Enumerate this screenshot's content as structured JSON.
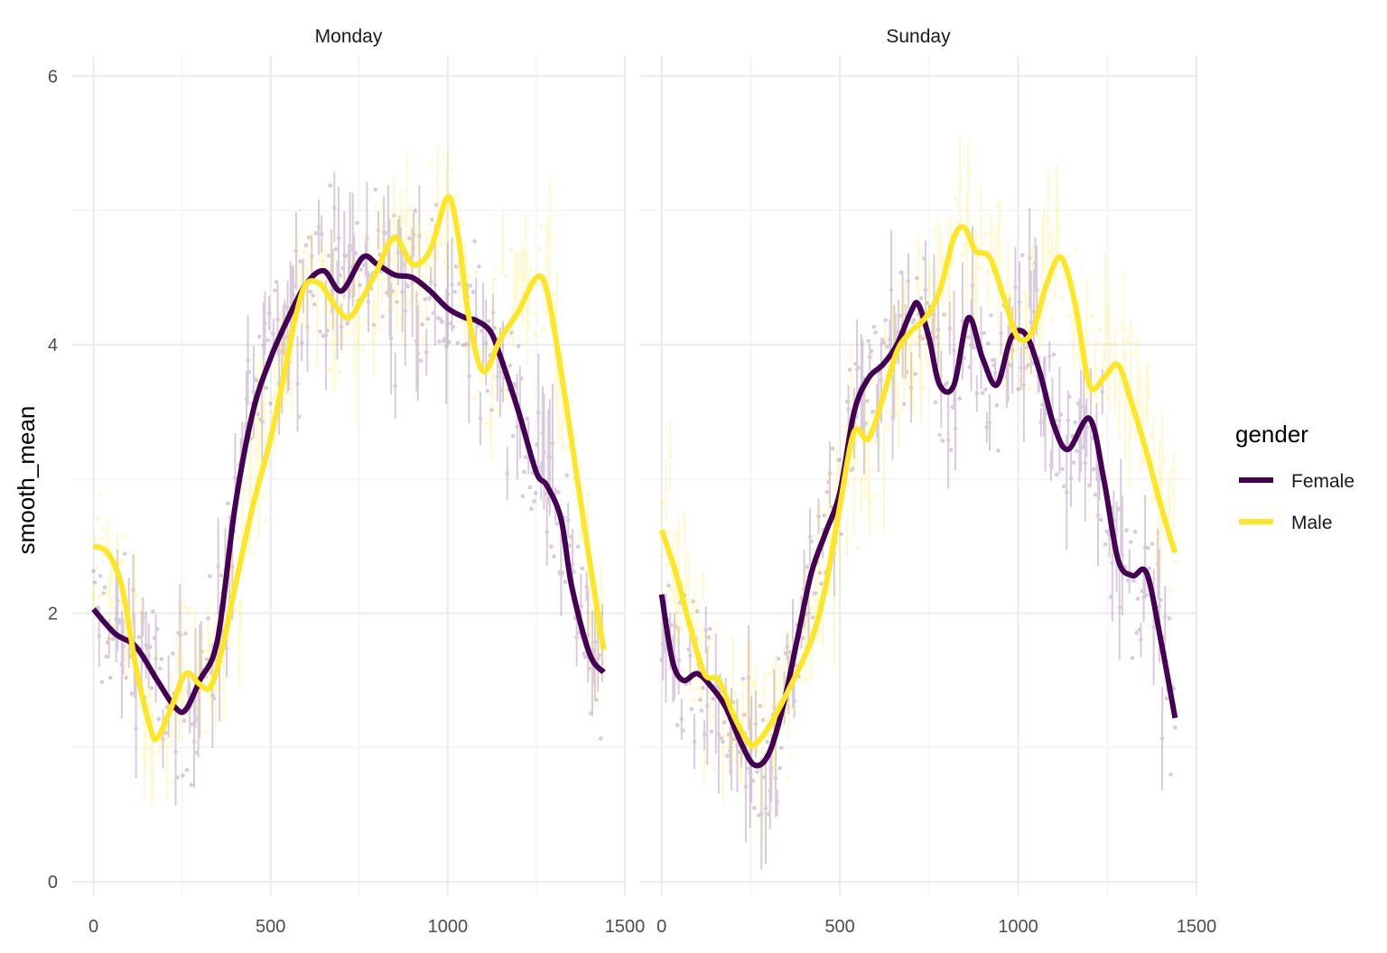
{
  "chart_data": {
    "type": "line",
    "ylabel": "smooth_mean",
    "xlabel": "",
    "xlim": [
      -60,
      1500
    ],
    "ylim": [
      -0.1,
      6.15
    ],
    "x_ticks": [
      0,
      500,
      1000,
      1500
    ],
    "y_ticks": [
      0,
      2,
      4,
      6
    ],
    "grid": true,
    "raw_points_shown": true,
    "legend": {
      "title": "gender",
      "position": "right",
      "entries": [
        "Female",
        "Male"
      ]
    },
    "colors": {
      "Female": "#440154",
      "Male": "#FDE725"
    },
    "panels": [
      {
        "title": "Monday",
        "series": [
          {
            "name": "Female",
            "x": [
              0,
              60,
              120,
              180,
              230,
              260,
              300,
              350,
              400,
              450,
              500,
              550,
              600,
              650,
              700,
              760,
              800,
              850,
              900,
              950,
              1000,
              1050,
              1080,
              1120,
              1150,
              1200,
              1250,
              1280,
              1320,
              1350,
              1400,
              1440
            ],
            "y": [
              2.03,
              1.85,
              1.75,
              1.5,
              1.3,
              1.28,
              1.5,
              1.8,
              2.8,
              3.5,
              3.9,
              4.2,
              4.45,
              4.55,
              4.4,
              4.65,
              4.6,
              4.52,
              4.5,
              4.4,
              4.27,
              4.2,
              4.18,
              4.1,
              3.9,
              3.5,
              3.05,
              2.95,
              2.7,
              2.2,
              1.7,
              1.56
            ]
          },
          {
            "name": "Male",
            "x": [
              0,
              40,
              80,
              120,
              160,
              180,
              220,
              260,
              300,
              330,
              360,
              400,
              450,
              500,
              540,
              570,
              600,
              640,
              680,
              720,
              760,
              800,
              850,
              900,
              950,
              1000,
              1030,
              1060,
              1100,
              1150,
              1200,
              1250,
              1280,
              1320,
              1360,
              1400,
              1440
            ],
            "y": [
              2.5,
              2.45,
              2.2,
              1.6,
              1.15,
              1.07,
              1.3,
              1.55,
              1.47,
              1.45,
              1.7,
              2.2,
              2.8,
              3.3,
              3.8,
              4.2,
              4.45,
              4.45,
              4.3,
              4.2,
              4.35,
              4.55,
              4.8,
              4.6,
              4.7,
              5.1,
              4.8,
              4.2,
              3.8,
              4.05,
              4.25,
              4.5,
              4.4,
              3.8,
              3.1,
              2.4,
              1.73
            ]
          }
        ]
      },
      {
        "title": "Sunday",
        "series": [
          {
            "name": "Female",
            "x": [
              0,
              30,
              60,
              100,
              140,
              180,
              220,
              260,
              300,
              340,
              380,
              420,
              460,
              500,
              540,
              580,
              620,
              660,
              700,
              720,
              750,
              780,
              820,
              860,
              900,
              940,
              980,
              1020,
              1060,
              1100,
              1140,
              1200,
              1240,
              1280,
              1320,
              1360,
              1400,
              1440
            ],
            "y": [
              2.14,
              1.65,
              1.5,
              1.55,
              1.45,
              1.3,
              1.05,
              0.87,
              0.95,
              1.3,
              1.8,
              2.3,
              2.6,
              2.9,
              3.5,
              3.75,
              3.85,
              4.0,
              4.25,
              4.3,
              4.05,
              3.7,
              3.7,
              4.2,
              3.9,
              3.7,
              4.05,
              4.08,
              3.8,
              3.4,
              3.22,
              3.45,
              3.0,
              2.4,
              2.28,
              2.3,
              1.8,
              1.22
            ]
          },
          {
            "name": "Male",
            "x": [
              0,
              40,
              80,
              120,
              160,
              200,
              240,
              260,
              300,
              360,
              420,
              460,
              500,
              540,
              580,
              620,
              660,
              700,
              740,
              780,
              820,
              850,
              880,
              920,
              960,
              1000,
              1040,
              1080,
              1120,
              1160,
              1200,
              1240,
              1280,
              1320,
              1360,
              1400,
              1440
            ],
            "y": [
              2.62,
              2.3,
              1.9,
              1.55,
              1.5,
              1.25,
              1.05,
              1.02,
              1.15,
              1.45,
              1.8,
              2.2,
              2.8,
              3.35,
              3.3,
              3.6,
              3.95,
              4.1,
              4.2,
              4.4,
              4.8,
              4.87,
              4.7,
              4.65,
              4.35,
              4.05,
              4.1,
              4.45,
              4.65,
              4.3,
              3.7,
              3.75,
              3.85,
              3.55,
              3.2,
              2.8,
              2.45
            ]
          }
        ]
      }
    ]
  }
}
